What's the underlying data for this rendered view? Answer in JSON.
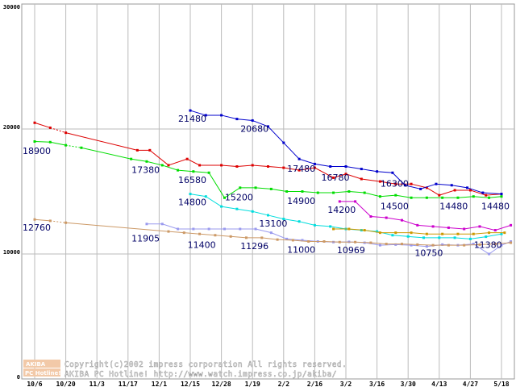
{
  "chart_data": {
    "type": "line",
    "title": "",
    "xlabel": "",
    "ylabel": "",
    "ylim": [
      0,
      30000
    ],
    "grid": true,
    "y_ticks": [
      "30000",
      "20000",
      "10000",
      "0"
    ],
    "categories": [
      "10/6",
      "10/20",
      "11/3",
      "11/17",
      "12/1",
      "12/15",
      "12/28",
      "1/19",
      "2/2",
      "2/16",
      "3/2",
      "3/16",
      "3/30",
      "4/13",
      "4/27",
      "5/18"
    ],
    "series": [
      {
        "name": "red",
        "color": "#dd0000",
        "dashed_start": 1,
        "points": [
          [
            0,
            20500
          ],
          [
            0.5,
            20100
          ],
          [
            1,
            19700
          ],
          [
            3.3,
            18300
          ],
          [
            3.7,
            18300
          ],
          [
            4.3,
            17100
          ],
          [
            4.9,
            17600
          ],
          [
            5.3,
            17100
          ],
          [
            6,
            17100
          ],
          [
            6.5,
            17000
          ],
          [
            7,
            17100
          ],
          [
            7.5,
            17000
          ],
          [
            8,
            16900
          ],
          [
            8.5,
            16700
          ],
          [
            9,
            16900
          ],
          [
            9.6,
            16100
          ],
          [
            10,
            16400
          ],
          [
            10.5,
            16000
          ],
          [
            11.1,
            15800
          ],
          [
            11.6,
            15600
          ],
          [
            12.1,
            15600
          ],
          [
            12.6,
            15300
          ],
          [
            13,
            14700
          ],
          [
            13.5,
            15100
          ],
          [
            14,
            15100
          ],
          [
            14.5,
            14700
          ],
          [
            15,
            14800
          ]
        ]
      },
      {
        "name": "green",
        "color": "#00dd00",
        "dashed_start": 2,
        "points": [
          [
            0,
            19000
          ],
          [
            0.5,
            18950
          ],
          [
            1,
            18700
          ],
          [
            1.5,
            18500
          ],
          [
            3.1,
            17600
          ],
          [
            3.6,
            17400
          ],
          [
            4.1,
            17100
          ],
          [
            4.6,
            16700
          ],
          [
            5.1,
            16600
          ],
          [
            5.6,
            16500
          ],
          [
            6.1,
            14500
          ],
          [
            6.6,
            15300
          ],
          [
            7.1,
            15300
          ],
          [
            7.6,
            15200
          ],
          [
            8.1,
            15000
          ],
          [
            8.6,
            15000
          ],
          [
            9.1,
            14900
          ],
          [
            9.6,
            14900
          ],
          [
            10.1,
            15000
          ],
          [
            10.6,
            14900
          ],
          [
            11.1,
            14600
          ],
          [
            11.6,
            14700
          ],
          [
            12.1,
            14500
          ],
          [
            12.6,
            14500
          ],
          [
            13.1,
            14500
          ],
          [
            13.6,
            14500
          ],
          [
            14.1,
            14600
          ],
          [
            14.6,
            14500
          ],
          [
            15,
            14600
          ]
        ]
      },
      {
        "name": "blue",
        "color": "#0000cc",
        "dashed_start": -1,
        "points": [
          [
            5,
            21480
          ],
          [
            5.5,
            21100
          ],
          [
            6,
            21100
          ],
          [
            6.5,
            20800
          ],
          [
            7,
            20680
          ],
          [
            7.5,
            20200
          ],
          [
            8,
            18900
          ],
          [
            8.5,
            17600
          ],
          [
            9,
            17200
          ],
          [
            9.5,
            17000
          ],
          [
            10,
            17000
          ],
          [
            10.5,
            16800
          ],
          [
            11,
            16600
          ],
          [
            11.5,
            16500
          ],
          [
            11.9,
            15500
          ],
          [
            12.4,
            15200
          ],
          [
            12.9,
            15600
          ],
          [
            13.4,
            15500
          ],
          [
            13.9,
            15300
          ],
          [
            14.4,
            14900
          ],
          [
            15,
            14800
          ]
        ]
      },
      {
        "name": "cyan",
        "color": "#00dddd",
        "dashed_start": -1,
        "points": [
          [
            5,
            14800
          ],
          [
            5.5,
            14600
          ],
          [
            6,
            13800
          ],
          [
            6.5,
            13600
          ],
          [
            7,
            13400
          ],
          [
            7.5,
            13100
          ],
          [
            8,
            12800
          ],
          [
            8.5,
            12600
          ],
          [
            9,
            12300
          ],
          [
            9.5,
            12200
          ],
          [
            10,
            12000
          ],
          [
            10.5,
            11900
          ],
          [
            11,
            11800
          ],
          [
            11.5,
            11500
          ],
          [
            12,
            11400
          ],
          [
            12.5,
            11300
          ],
          [
            13,
            11300
          ],
          [
            13.5,
            11300
          ],
          [
            14,
            11200
          ],
          [
            14.5,
            11380
          ],
          [
            15,
            11600
          ]
        ]
      },
      {
        "name": "magenta",
        "color": "#cc00cc",
        "dashed_start": -1,
        "points": [
          [
            9.8,
            14200
          ],
          [
            10.3,
            14200
          ],
          [
            10.8,
            13000
          ],
          [
            11.3,
            12900
          ],
          [
            11.8,
            12700
          ],
          [
            12.3,
            12300
          ],
          [
            12.8,
            12200
          ],
          [
            13.3,
            12100
          ],
          [
            13.8,
            12000
          ],
          [
            14.3,
            12200
          ],
          [
            14.8,
            11900
          ],
          [
            15.3,
            12300
          ]
        ]
      },
      {
        "name": "orange",
        "color": "#cc9900",
        "dashed_start": -1,
        "points": [
          [
            9.6,
            12000
          ],
          [
            10.1,
            12000
          ],
          [
            10.6,
            11900
          ],
          [
            11.1,
            11700
          ],
          [
            11.6,
            11700
          ],
          [
            12.1,
            11700
          ],
          [
            12.6,
            11600
          ],
          [
            13.1,
            11600
          ],
          [
            13.6,
            11600
          ],
          [
            14.1,
            11600
          ],
          [
            14.6,
            11700
          ],
          [
            15.1,
            11700
          ]
        ]
      },
      {
        "name": "lavender",
        "color": "#9999ee",
        "dashed_start": -1,
        "points": [
          [
            3.6,
            12400
          ],
          [
            4.1,
            12400
          ],
          [
            4.6,
            12000
          ],
          [
            5.1,
            12000
          ],
          [
            5.6,
            12000
          ],
          [
            6.1,
            12000
          ],
          [
            6.6,
            12000
          ],
          [
            7.1,
            12000
          ],
          [
            7.6,
            11700
          ],
          [
            8.1,
            11200
          ],
          [
            8.6,
            11100
          ],
          [
            9.1,
            11000
          ],
          [
            9.6,
            10950
          ],
          [
            10.1,
            10969
          ],
          [
            10.6,
            10900
          ],
          [
            11.1,
            10700
          ],
          [
            11.6,
            10750
          ],
          [
            12.1,
            10700
          ],
          [
            12.6,
            10600
          ],
          [
            13.1,
            10750
          ],
          [
            13.6,
            10700
          ],
          [
            14.1,
            10800
          ],
          [
            14.6,
            10000
          ],
          [
            15,
            10700
          ],
          [
            15.3,
            11000
          ]
        ]
      },
      {
        "name": "tan",
        "color": "#cc9966",
        "dashed_start": 1,
        "points": [
          [
            0,
            12760
          ],
          [
            0.5,
            12650
          ],
          [
            1,
            12500
          ],
          [
            4.3,
            11800
          ],
          [
            4.8,
            11700
          ],
          [
            5.3,
            11600
          ],
          [
            5.8,
            11500
          ],
          [
            6.3,
            11400
          ],
          [
            6.8,
            11300
          ],
          [
            7.3,
            11296
          ],
          [
            7.8,
            11150
          ],
          [
            8.3,
            11100
          ],
          [
            8.8,
            11000
          ],
          [
            9.3,
            11000
          ],
          [
            9.8,
            10950
          ],
          [
            10.3,
            10950
          ],
          [
            10.8,
            10900
          ],
          [
            11.3,
            10800
          ],
          [
            11.8,
            10800
          ],
          [
            12.3,
            10750
          ],
          [
            12.8,
            10700
          ],
          [
            13.3,
            10700
          ],
          [
            13.8,
            10700
          ],
          [
            14.3,
            10750
          ],
          [
            14.8,
            10800
          ],
          [
            15.3,
            10900
          ]
        ]
      }
    ],
    "annotations": [
      {
        "text": "18900",
        "x": 0,
        "y": 18900
      },
      {
        "text": "17380",
        "x": 3.5,
        "y": 17380
      },
      {
        "text": "12760",
        "x": 0,
        "y": 12760
      },
      {
        "text": "11905",
        "x": 3.5,
        "y": 11905
      },
      {
        "text": "21480",
        "x": 5,
        "y": 21480
      },
      {
        "text": "20680",
        "x": 7,
        "y": 20680
      },
      {
        "text": "16580",
        "x": 5,
        "y": 16580
      },
      {
        "text": "14800",
        "x": 5,
        "y": 14800
      },
      {
        "text": "11400",
        "x": 5.3,
        "y": 11400
      },
      {
        "text": "15200",
        "x": 6.5,
        "y": 15200
      },
      {
        "text": "11296",
        "x": 7,
        "y": 11296
      },
      {
        "text": "13100",
        "x": 7.6,
        "y": 13100
      },
      {
        "text": "17480",
        "x": 8.5,
        "y": 17480
      },
      {
        "text": "14900",
        "x": 8.5,
        "y": 14900
      },
      {
        "text": "11000",
        "x": 8.5,
        "y": 11000
      },
      {
        "text": "16780",
        "x": 9.6,
        "y": 16780
      },
      {
        "text": "14200",
        "x": 9.8,
        "y": 14200
      },
      {
        "text": "10969",
        "x": 10.1,
        "y": 10969
      },
      {
        "text": "16300",
        "x": 11.5,
        "y": 16300
      },
      {
        "text": "14500",
        "x": 11.5,
        "y": 14500
      },
      {
        "text": "10750",
        "x": 12.6,
        "y": 10750
      },
      {
        "text": "14480",
        "x": 13.4,
        "y": 14480
      },
      {
        "text": "11380",
        "x": 14.5,
        "y": 11380
      },
      {
        "text": "14480",
        "x": 15,
        "y": 14480
      }
    ]
  },
  "footer": {
    "logo_line1": "AKIBA",
    "logo_line2": "PC Hotline!",
    "copyright_line1": "Copyright(c)2002 impress corporation All rights reserved.",
    "copyright_line2": "AKIBA PC Hotline!  http://www.watch.impress.co.jp/akiba/"
  }
}
